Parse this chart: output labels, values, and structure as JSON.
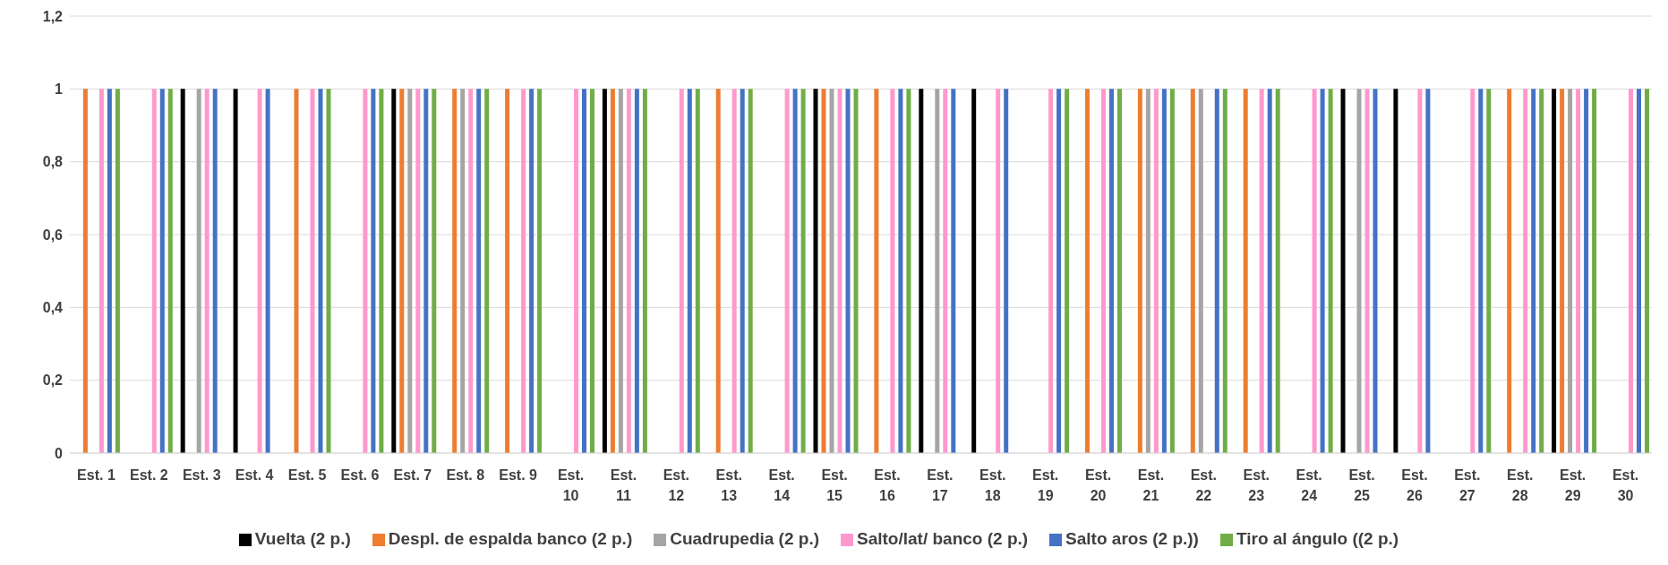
{
  "chart_data": {
    "type": "bar",
    "categories": [
      "Est. 1",
      "Est. 2",
      "Est. 3",
      "Est. 4",
      "Est. 5",
      "Est. 6",
      "Est. 7",
      "Est. 8",
      "Est. 9",
      "Est. 10",
      "Est. 11",
      "Est. 12",
      "Est. 13",
      "Est. 14",
      "Est. 15",
      "Est. 16",
      "Est. 17",
      "Est. 18",
      "Est. 19",
      "Est. 20",
      "Est. 21",
      "Est. 22",
      "Est. 23",
      "Est. 24",
      "Est. 25",
      "Est. 26",
      "Est. 27",
      "Est. 28",
      "Est. 29",
      "Est. 30"
    ],
    "series": [
      {
        "name": "Vuelta (2 p.)",
        "color": "#000000",
        "values": [
          0,
          0,
          1,
          1,
          0,
          0,
          1,
          0,
          0,
          0,
          1,
          0,
          0,
          0,
          1,
          0,
          1,
          1,
          0,
          0,
          0,
          0,
          0,
          0,
          1,
          1,
          0,
          0,
          1,
          0
        ]
      },
      {
        "name": "Despl. de espalda banco (2 p.)",
        "color": "#ed7d31",
        "values": [
          1,
          0,
          0,
          0,
          1,
          0,
          1,
          1,
          1,
          0,
          1,
          0,
          1,
          0,
          1,
          1,
          0,
          0,
          0,
          1,
          1,
          1,
          1,
          0,
          0,
          0,
          0,
          1,
          1,
          0
        ]
      },
      {
        "name": "Cuadrupedia (2 p.)",
        "color": "#a5a5a5",
        "values": [
          0,
          0,
          1,
          0,
          0,
          0,
          1,
          1,
          0,
          0,
          1,
          0,
          0,
          0,
          1,
          0,
          1,
          0,
          0,
          0,
          1,
          1,
          0,
          0,
          1,
          0,
          0,
          0,
          1,
          0
        ]
      },
      {
        "name": "Salto/lat/  banco (2 p.)",
        "color": "#ff99cc",
        "values": [
          1,
          1,
          1,
          1,
          1,
          1,
          1,
          1,
          1,
          1,
          1,
          1,
          1,
          1,
          1,
          1,
          1,
          1,
          1,
          1,
          1,
          0,
          1,
          1,
          1,
          1,
          1,
          1,
          1,
          1
        ]
      },
      {
        "name": "Salto aros (2 p.))",
        "color": "#4472c4",
        "values": [
          1,
          1,
          1,
          1,
          1,
          1,
          1,
          1,
          1,
          1,
          1,
          1,
          1,
          1,
          1,
          1,
          1,
          1,
          1,
          1,
          1,
          1,
          1,
          1,
          1,
          1,
          1,
          1,
          1,
          1
        ]
      },
      {
        "name": "Tiro al ángulo ((2 p.)",
        "color": "#70ad47",
        "values": [
          1,
          1,
          0,
          0,
          1,
          1,
          1,
          1,
          1,
          1,
          1,
          1,
          1,
          1,
          1,
          1,
          0,
          0,
          1,
          1,
          1,
          1,
          1,
          1,
          0,
          0,
          1,
          1,
          1,
          1
        ]
      }
    ],
    "ylim": [
      0,
      1.2
    ],
    "yticks": [
      0,
      {
        "value": 0.2,
        "label": "0,2"
      },
      {
        "value": 0.4,
        "label": "0,4"
      },
      {
        "value": 0.6,
        "label": "0,6"
      },
      {
        "value": 0.8,
        "label": "0,8"
      },
      1,
      {
        "value": 1.2,
        "label": "1,2"
      }
    ],
    "grid": "y",
    "legend": "bottom"
  }
}
